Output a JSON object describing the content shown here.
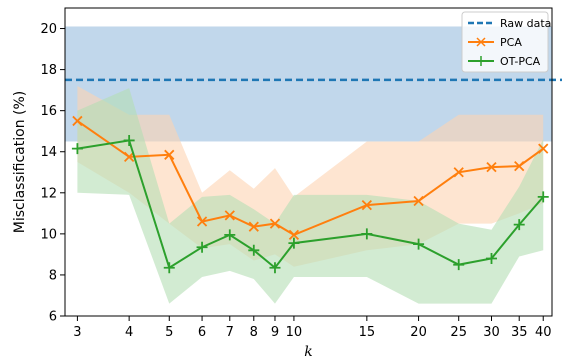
{
  "chart_data": {
    "type": "line",
    "title": "",
    "xlabel": "k",
    "ylabel": "Misclassification (%)",
    "x": [
      3,
      4,
      5,
      6,
      7,
      8,
      9,
      10,
      15,
      20,
      25,
      30,
      35,
      40
    ],
    "x_scale": "log",
    "x_tick_labels": [
      "3",
      "4",
      "5",
      "6",
      "7",
      "8",
      "9",
      "10",
      "15",
      "20",
      "25",
      "30",
      "35",
      "40"
    ],
    "xlim": [
      2.8,
      42
    ],
    "ylim": [
      6,
      21
    ],
    "y_ticks": [
      6,
      8,
      10,
      12,
      14,
      16,
      18,
      20
    ],
    "y_tick_labels": [
      "6",
      "8",
      "10",
      "12",
      "14",
      "16",
      "18",
      "20"
    ],
    "grid": false,
    "legend_position": "top-right",
    "reference": {
      "name": "Raw data",
      "value": 17.5,
      "band": [
        14.5,
        20.1
      ],
      "color": "#1f77b4",
      "band_color": "#a6c6e2"
    },
    "series": [
      {
        "name": "PCA",
        "color": "#ff7f0e",
        "band_color": "#fdd4b2",
        "marker": "x",
        "values": [
          15.5,
          13.75,
          13.85,
          10.6,
          10.9,
          10.35,
          10.5,
          9.95,
          11.4,
          11.6,
          13.0,
          13.25,
          13.3,
          14.15
        ],
        "lower": [
          13.5,
          12.0,
          10.5,
          9.3,
          9.5,
          8.7,
          9.0,
          8.4,
          9.2,
          9.5,
          10.5,
          10.5,
          11.0,
          11.5
        ],
        "upper": [
          17.2,
          15.8,
          15.8,
          12.0,
          13.1,
          12.2,
          13.2,
          11.8,
          14.5,
          14.5,
          15.8,
          15.8,
          15.8,
          15.8
        ]
      },
      {
        "name": "OT-PCA",
        "color": "#2ca02c",
        "band_color": "#b4deb4",
        "marker": "+",
        "values": [
          14.15,
          14.55,
          8.35,
          9.35,
          9.95,
          9.2,
          8.35,
          9.55,
          10.0,
          9.5,
          8.5,
          8.8,
          10.45,
          11.8
        ],
        "lower": [
          12.0,
          11.9,
          6.6,
          7.9,
          8.2,
          7.8,
          6.6,
          7.9,
          7.9,
          6.6,
          6.6,
          6.6,
          8.9,
          9.2
        ],
        "upper": [
          16.0,
          17.1,
          10.5,
          11.8,
          11.9,
          11.2,
          10.5,
          11.9,
          11.9,
          11.6,
          10.5,
          10.2,
          12.3,
          14.6
        ]
      }
    ]
  }
}
